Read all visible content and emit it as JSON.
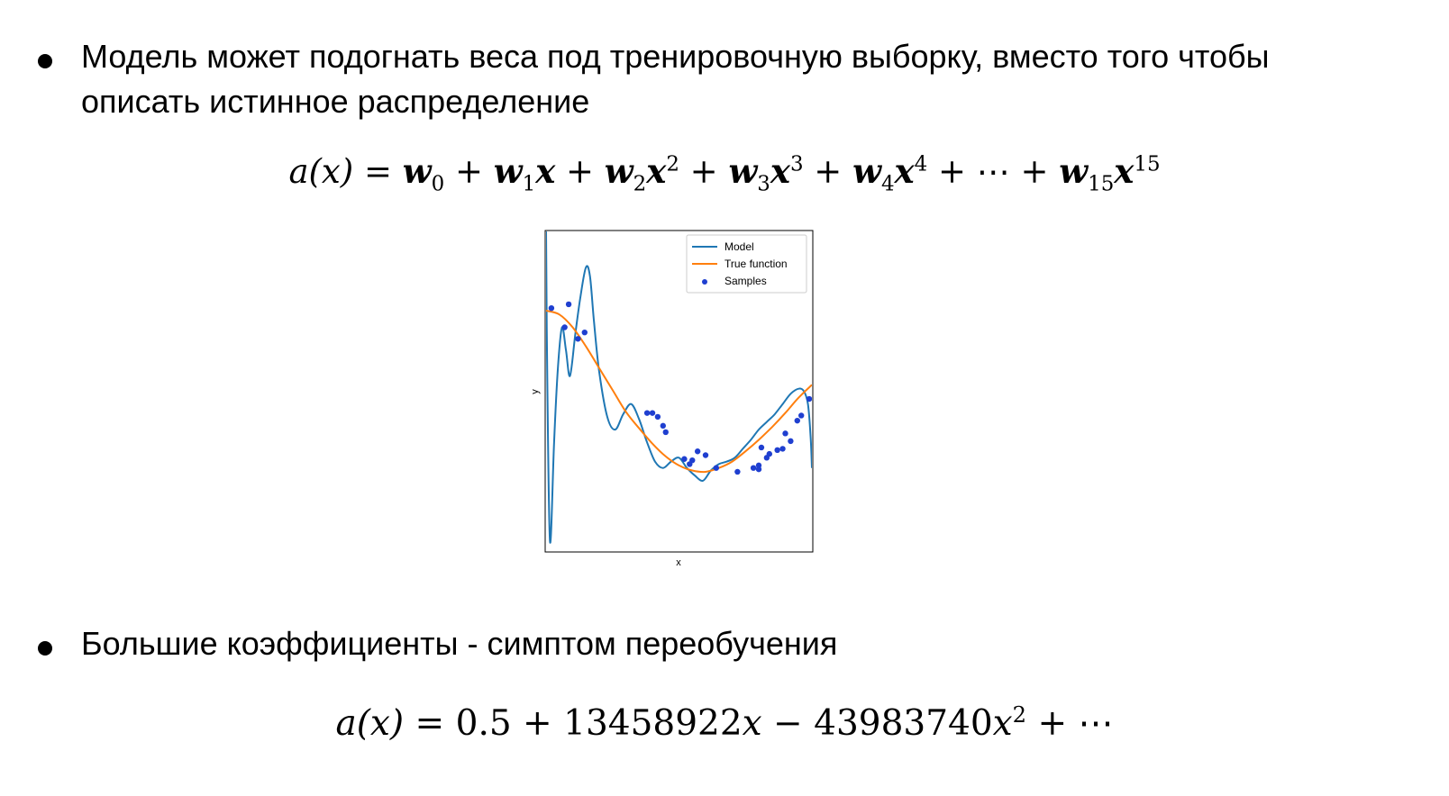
{
  "bullets": [
    "Модель может подогнать веса под тренировочную выборку, вместо того чтобы описать истинное распределение",
    "Большие коэффициенты - симптом переобучения"
  ],
  "formula1": {
    "lhs": "a(x)",
    "terms": [
      "w",
      "0",
      "w",
      "1",
      "x",
      "w",
      "2",
      "x",
      "2",
      "w",
      "3",
      "x",
      "3",
      "w",
      "4",
      "x",
      "4",
      "⋯",
      "w",
      "15",
      "x",
      "15"
    ]
  },
  "formula2": {
    "lhs": "a(x)",
    "c0": "0.5",
    "c1": "13458922",
    "c2": "43983740",
    "ellipsis": "⋯"
  },
  "chart_data": {
    "type": "line",
    "xlabel": "x",
    "ylabel": "y",
    "xlim": [
      0,
      1
    ],
    "ylim": [
      -1.25,
      1.25
    ],
    "legend": {
      "placement": "top-right",
      "entries": [
        "Model",
        "True function",
        "Samples"
      ]
    },
    "colors": {
      "Model": "#1f77b4",
      "True function": "#ff7f0e",
      "Samples": "#1f3fd0"
    },
    "series": [
      {
        "name": "Model",
        "x": [
          0.0,
          0.005,
          0.015,
          0.03,
          0.045,
          0.06,
          0.075,
          0.09,
          0.11,
          0.13,
          0.15,
          0.165,
          0.18,
          0.2,
          0.23,
          0.26,
          0.29,
          0.32,
          0.35,
          0.38,
          0.41,
          0.44,
          0.47,
          0.5,
          0.53,
          0.56,
          0.59,
          0.62,
          0.65,
          0.68,
          0.71,
          0.74,
          0.77,
          0.8,
          0.83,
          0.86,
          0.89,
          0.92,
          0.95,
          0.97,
          0.985,
          0.995,
          1.0
        ],
        "y": [
          1.25,
          0.0,
          -1.18,
          -0.4,
          0.2,
          0.5,
          0.32,
          0.12,
          0.45,
          0.75,
          0.97,
          0.9,
          0.55,
          0.15,
          -0.2,
          -0.3,
          -0.18,
          -0.1,
          -0.22,
          -0.4,
          -0.55,
          -0.6,
          -0.55,
          -0.52,
          -0.6,
          -0.66,
          -0.7,
          -0.62,
          -0.57,
          -0.55,
          -0.52,
          -0.45,
          -0.38,
          -0.3,
          -0.24,
          -0.18,
          -0.1,
          -0.02,
          0.02,
          0.0,
          -0.1,
          -0.35,
          -0.6
        ]
      },
      {
        "name": "True function",
        "x": [
          0.0,
          0.05,
          0.1,
          0.15,
          0.2,
          0.25,
          0.3,
          0.35,
          0.4,
          0.45,
          0.5,
          0.55,
          0.6,
          0.65,
          0.7,
          0.75,
          0.8,
          0.85,
          0.9,
          0.95,
          1.0
        ],
        "y": [
          0.63,
          0.6,
          0.5,
          0.35,
          0.18,
          0.01,
          -0.16,
          -0.29,
          -0.41,
          -0.51,
          -0.58,
          -0.62,
          -0.63,
          -0.6,
          -0.55,
          -0.47,
          -0.38,
          -0.28,
          -0.17,
          -0.05,
          0.05
        ]
      },
      {
        "name": "Samples",
        "x": [
          0.02,
          0.07,
          0.085,
          0.12,
          0.145,
          0.38,
          0.4,
          0.42,
          0.44,
          0.45,
          0.52,
          0.54,
          0.55,
          0.57,
          0.6,
          0.64,
          0.72,
          0.78,
          0.8,
          0.8,
          0.81,
          0.83,
          0.84,
          0.87,
          0.89,
          0.9,
          0.92,
          0.945,
          0.96,
          0.99
        ],
        "y": [
          0.65,
          0.5,
          0.68,
          0.41,
          0.46,
          -0.17,
          -0.17,
          -0.2,
          -0.27,
          -0.32,
          -0.53,
          -0.57,
          -0.54,
          -0.47,
          -0.5,
          -0.6,
          -0.63,
          -0.6,
          -0.58,
          -0.61,
          -0.44,
          -0.52,
          -0.49,
          -0.46,
          -0.45,
          -0.33,
          -0.39,
          -0.23,
          -0.19,
          -0.06
        ]
      }
    ]
  }
}
